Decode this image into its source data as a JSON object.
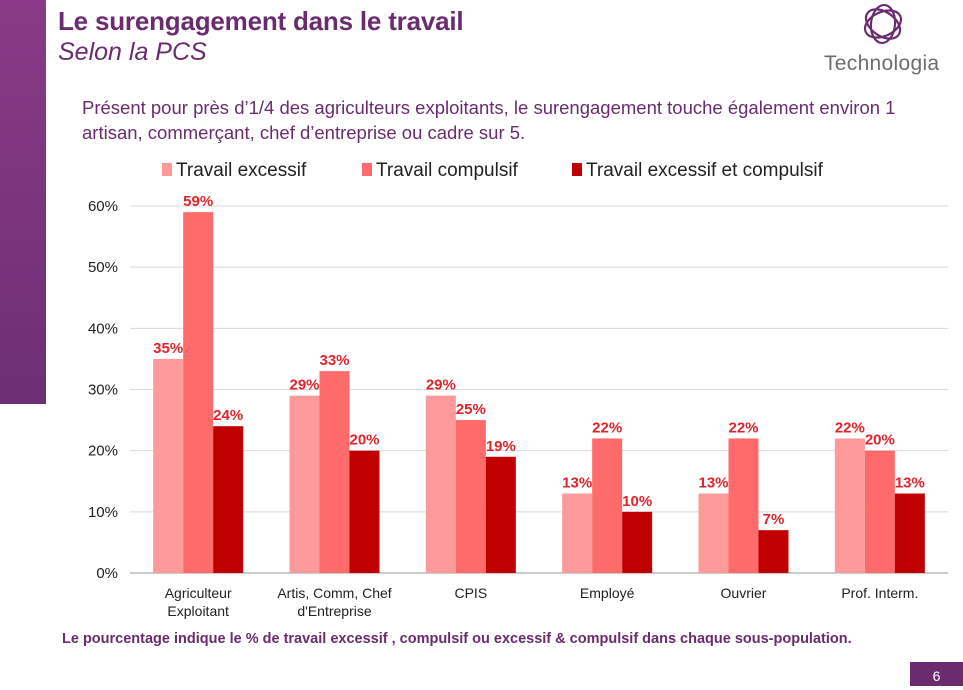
{
  "header": {
    "title": "Le surengagement dans le travail",
    "subtitle": "Selon la PCS"
  },
  "logo": {
    "text": "Technologia",
    "icon": "swirl-logo-icon"
  },
  "intro": {
    "text": "Présent pour près d’1/4 des agriculteurs exploitants, le surengagement touche également environ 1 artisan, commerçant, chef d’entreprise ou cadre sur 5."
  },
  "footnote": "Le pourcentage indique le % de travail excessif , compulsif ou excessif & compulsif dans chaque sous-population.",
  "page_number": "6",
  "colors": {
    "brand": "#6a2c6f",
    "series1": "#ff9a9a",
    "series2": "#ff6b6b",
    "series3": "#c00000",
    "data_label": "#e0242c"
  },
  "chart_data": {
    "type": "bar",
    "categories": [
      [
        "Agriculteur",
        "Exploitant"
      ],
      [
        "Artis, Comm, Chef",
        "d'Entreprise"
      ],
      [
        "CPIS"
      ],
      [
        "Employé"
      ],
      [
        "Ouvrier"
      ],
      [
        "Prof. Interm."
      ]
    ],
    "series": [
      {
        "name": "Travail excessif",
        "values": [
          35,
          29,
          29,
          13,
          13,
          22
        ],
        "labels": [
          "35%",
          "29%",
          "29%",
          "13%",
          "13%",
          "22%"
        ]
      },
      {
        "name": "Travail compulsif",
        "values": [
          59,
          33,
          25,
          22,
          22,
          20
        ],
        "labels": [
          "59%",
          "33%",
          "25%",
          "22%",
          "22%",
          "20%"
        ]
      },
      {
        "name": "Travail excessif et compulsif",
        "values": [
          24,
          20,
          19,
          10,
          7,
          13
        ],
        "labels": [
          "24%",
          "20%",
          "19%",
          "10%",
          "7%",
          "13%"
        ]
      }
    ],
    "yticks": [
      "0%",
      "10%",
      "20%",
      "30%",
      "40%",
      "50%",
      "60%"
    ],
    "ylim": [
      0,
      60
    ],
    "grid": true,
    "legend_position": "top"
  }
}
